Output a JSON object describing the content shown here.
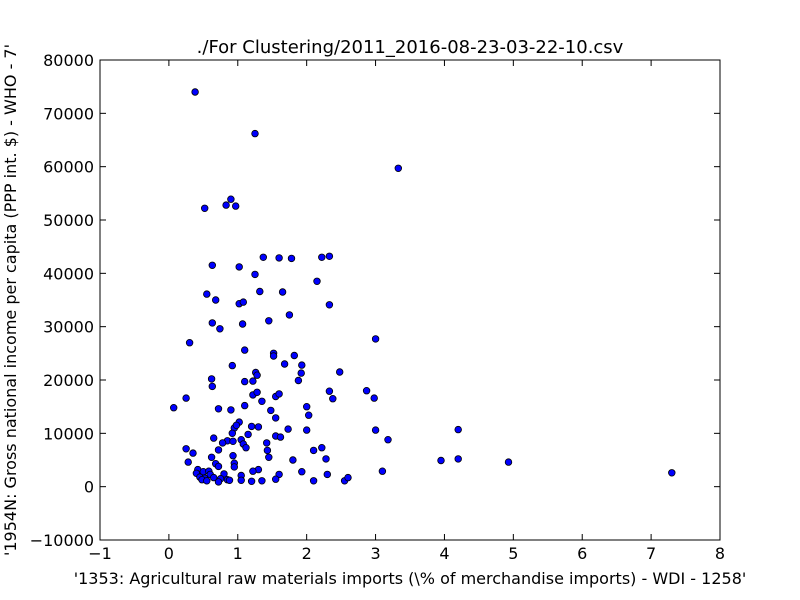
{
  "chart_data": {
    "type": "scatter",
    "title": "./For Clustering/2011_2016-08-23-03-22-10.csv",
    "xlabel": "'1353: Agricultural raw materials imports  (\\% of merchandise imports) - WDI - 1258'",
    "ylabel": "'1954N: Gross national income per capita (PPP int. $) - WHO - 7'",
    "xlim": [
      -1,
      8
    ],
    "ylim": [
      -10000,
      80000
    ],
    "xticks": [
      -1,
      0,
      1,
      2,
      3,
      4,
      5,
      6,
      7,
      8
    ],
    "xtick_labels": [
      "−1",
      "0",
      "1",
      "2",
      "3",
      "4",
      "5",
      "6",
      "7",
      "8"
    ],
    "yticks": [
      -10000,
      0,
      10000,
      20000,
      30000,
      40000,
      50000,
      60000,
      70000,
      80000
    ],
    "ytick_labels": [
      "−10000",
      "0",
      "10000",
      "20000",
      "30000",
      "40000",
      "50000",
      "60000",
      "70000",
      "80000"
    ],
    "grid": false,
    "marker_color": "#0000ff",
    "marker_edge": "#000000",
    "points": [
      [
        0.38,
        74000
      ],
      [
        1.25,
        66200
      ],
      [
        3.33,
        59700
      ],
      [
        0.52,
        52200
      ],
      [
        0.9,
        53900
      ],
      [
        0.83,
        52800
      ],
      [
        0.97,
        52600
      ],
      [
        1.37,
        43000
      ],
      [
        1.6,
        42900
      ],
      [
        1.78,
        42800
      ],
      [
        2.22,
        43000
      ],
      [
        2.33,
        43200
      ],
      [
        0.63,
        41500
      ],
      [
        1.02,
        41200
      ],
      [
        1.25,
        39800
      ],
      [
        2.15,
        38500
      ],
      [
        0.55,
        36100
      ],
      [
        1.32,
        36600
      ],
      [
        1.65,
        36500
      ],
      [
        0.68,
        35000
      ],
      [
        1.02,
        34300
      ],
      [
        1.08,
        34600
      ],
      [
        2.33,
        34100
      ],
      [
        1.75,
        32200
      ],
      [
        1.45,
        31100
      ],
      [
        0.63,
        30700
      ],
      [
        0.74,
        29600
      ],
      [
        1.07,
        30500
      ],
      [
        3.0,
        27700
      ],
      [
        0.3,
        27000
      ],
      [
        1.1,
        25600
      ],
      [
        1.52,
        25000
      ],
      [
        1.52,
        24500
      ],
      [
        1.82,
        24600
      ],
      [
        1.68,
        23000
      ],
      [
        1.93,
        22800
      ],
      [
        0.92,
        22700
      ],
      [
        1.92,
        21300
      ],
      [
        2.48,
        21500
      ],
      [
        1.26,
        21400
      ],
      [
        1.28,
        20900
      ],
      [
        0.62,
        20200
      ],
      [
        1.1,
        19700
      ],
      [
        1.22,
        19800
      ],
      [
        1.88,
        19900
      ],
      [
        0.63,
        18800
      ],
      [
        2.33,
        17900
      ],
      [
        2.87,
        18000
      ],
      [
        1.22,
        17200
      ],
      [
        1.28,
        17700
      ],
      [
        1.55,
        16900
      ],
      [
        1.6,
        17400
      ],
      [
        2.38,
        16500
      ],
      [
        2.98,
        16600
      ],
      [
        0.25,
        16600
      ],
      [
        1.35,
        16000
      ],
      [
        0.07,
        14800
      ],
      [
        0.72,
        14600
      ],
      [
        0.9,
        14400
      ],
      [
        1.1,
        15200
      ],
      [
        1.48,
        14300
      ],
      [
        2.0,
        15000
      ],
      [
        1.55,
        12900
      ],
      [
        2.03,
        13400
      ],
      [
        1.02,
        12100
      ],
      [
        0.95,
        11000
      ],
      [
        0.98,
        11500
      ],
      [
        1.2,
        11300
      ],
      [
        1.3,
        11200
      ],
      [
        1.73,
        10800
      ],
      [
        2.0,
        10600
      ],
      [
        3.0,
        10600
      ],
      [
        4.2,
        10700
      ],
      [
        0.92,
        10000
      ],
      [
        1.15,
        9800
      ],
      [
        1.55,
        9500
      ],
      [
        1.62,
        9300
      ],
      [
        0.65,
        9100
      ],
      [
        0.85,
        8600
      ],
      [
        0.93,
        8500
      ],
      [
        1.05,
        8800
      ],
      [
        3.18,
        8800
      ],
      [
        0.78,
        8200
      ],
      [
        1.08,
        8000
      ],
      [
        1.42,
        8200
      ],
      [
        0.25,
        7100
      ],
      [
        0.35,
        6300
      ],
      [
        0.72,
        6900
      ],
      [
        1.12,
        7300
      ],
      [
        1.43,
        6800
      ],
      [
        2.1,
        6800
      ],
      [
        2.22,
        7300
      ],
      [
        0.62,
        5500
      ],
      [
        0.93,
        5800
      ],
      [
        1.45,
        5500
      ],
      [
        1.8,
        5000
      ],
      [
        2.28,
        5200
      ],
      [
        3.95,
        4900
      ],
      [
        4.2,
        5200
      ],
      [
        4.93,
        4600
      ],
      [
        0.28,
        4600
      ],
      [
        0.68,
        4300
      ],
      [
        0.95,
        4400
      ],
      [
        0.72,
        3800
      ],
      [
        0.95,
        3700
      ],
      [
        1.3,
        3200
      ],
      [
        1.22,
        2900
      ],
      [
        1.93,
        2800
      ],
      [
        3.1,
        2900
      ],
      [
        0.42,
        3200
      ],
      [
        0.5,
        2800
      ],
      [
        0.58,
        2900
      ],
      [
        0.4,
        2500
      ],
      [
        0.6,
        2300
      ],
      [
        0.8,
        2400
      ],
      [
        1.05,
        2100
      ],
      [
        1.6,
        2300
      ],
      [
        7.3,
        2600
      ],
      [
        0.45,
        1800
      ],
      [
        0.52,
        1600
      ],
      [
        0.65,
        1700
      ],
      [
        0.75,
        1500
      ],
      [
        0.85,
        1300
      ],
      [
        1.05,
        1200
      ],
      [
        1.2,
        1000
      ],
      [
        1.35,
        1100
      ],
      [
        1.55,
        1400
      ],
      [
        2.1,
        1100
      ],
      [
        2.55,
        1100
      ],
      [
        0.48,
        1300
      ],
      [
        0.55,
        1100
      ],
      [
        0.72,
        900
      ],
      [
        0.88,
        1200
      ],
      [
        2.6,
        1700
      ],
      [
        2.3,
        2300
      ]
    ]
  }
}
